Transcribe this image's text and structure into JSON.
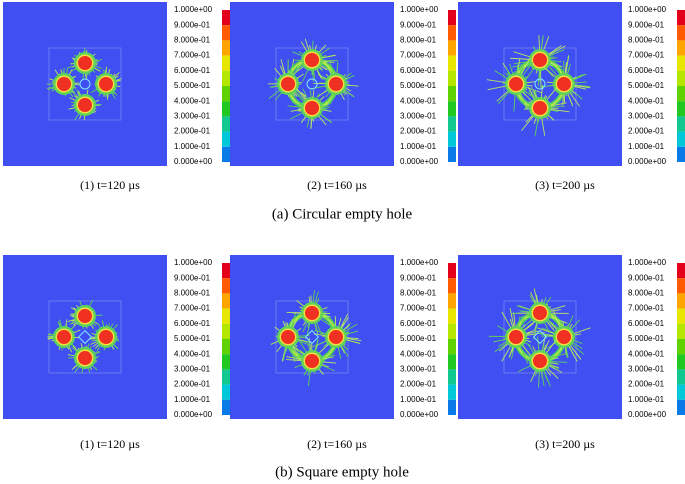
{
  "colorbar": {
    "labels": [
      "1.000e+00",
      "9.000e-01",
      "8.000e-01",
      "7.000e-01",
      "6.000e-01",
      "5.000e-01",
      "4.000e-01",
      "3.000e-01",
      "2.000e-01",
      "1.000e-01",
      "0.000e+00"
    ]
  },
  "rows": [
    {
      "caption": "(a) Circular empty hole",
      "panels": [
        {
          "caption": "(1) t=120 µs"
        },
        {
          "caption": "(2) t=160 µs"
        },
        {
          "caption": "(3) t=200 µs"
        }
      ]
    },
    {
      "caption": "(b) Square empty hole",
      "panels": [
        {
          "caption": "(1) t=120 µs"
        },
        {
          "caption": "(2) t=160 µs"
        },
        {
          "caption": "(3) t=200 µs"
        }
      ]
    }
  ]
}
